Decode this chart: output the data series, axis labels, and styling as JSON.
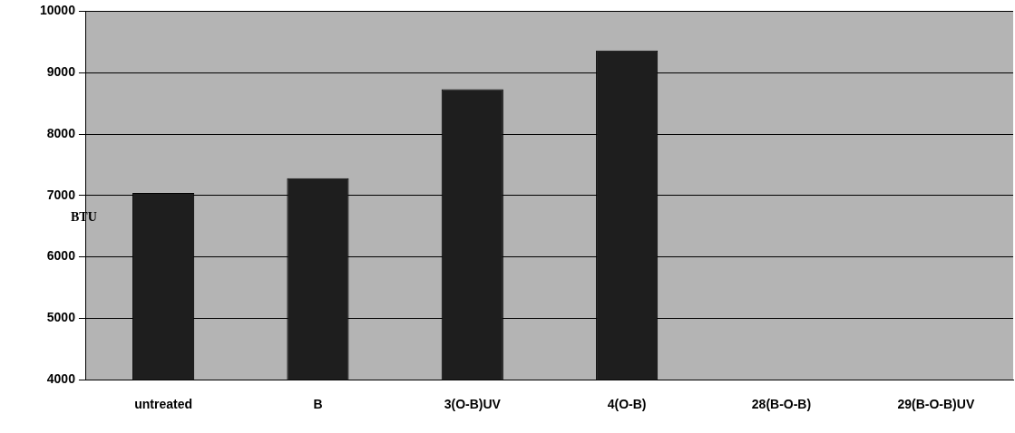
{
  "chart_data": {
    "type": "bar",
    "ylabel": "BTU",
    "categories": [
      "untreated",
      "B",
      "3(O-B)UV",
      "4(O-B)",
      "28(B-O-B)",
      "29(B-O-B)UV"
    ],
    "values": [
      7040,
      7280,
      8730,
      9360,
      null,
      null
    ],
    "color": "#1e1e1e",
    "ylim": [
      4000,
      10000
    ],
    "yticks": [
      4000,
      5000,
      6000,
      7000,
      8000,
      9000,
      10000
    ],
    "grid": "y",
    "legend": false
  }
}
